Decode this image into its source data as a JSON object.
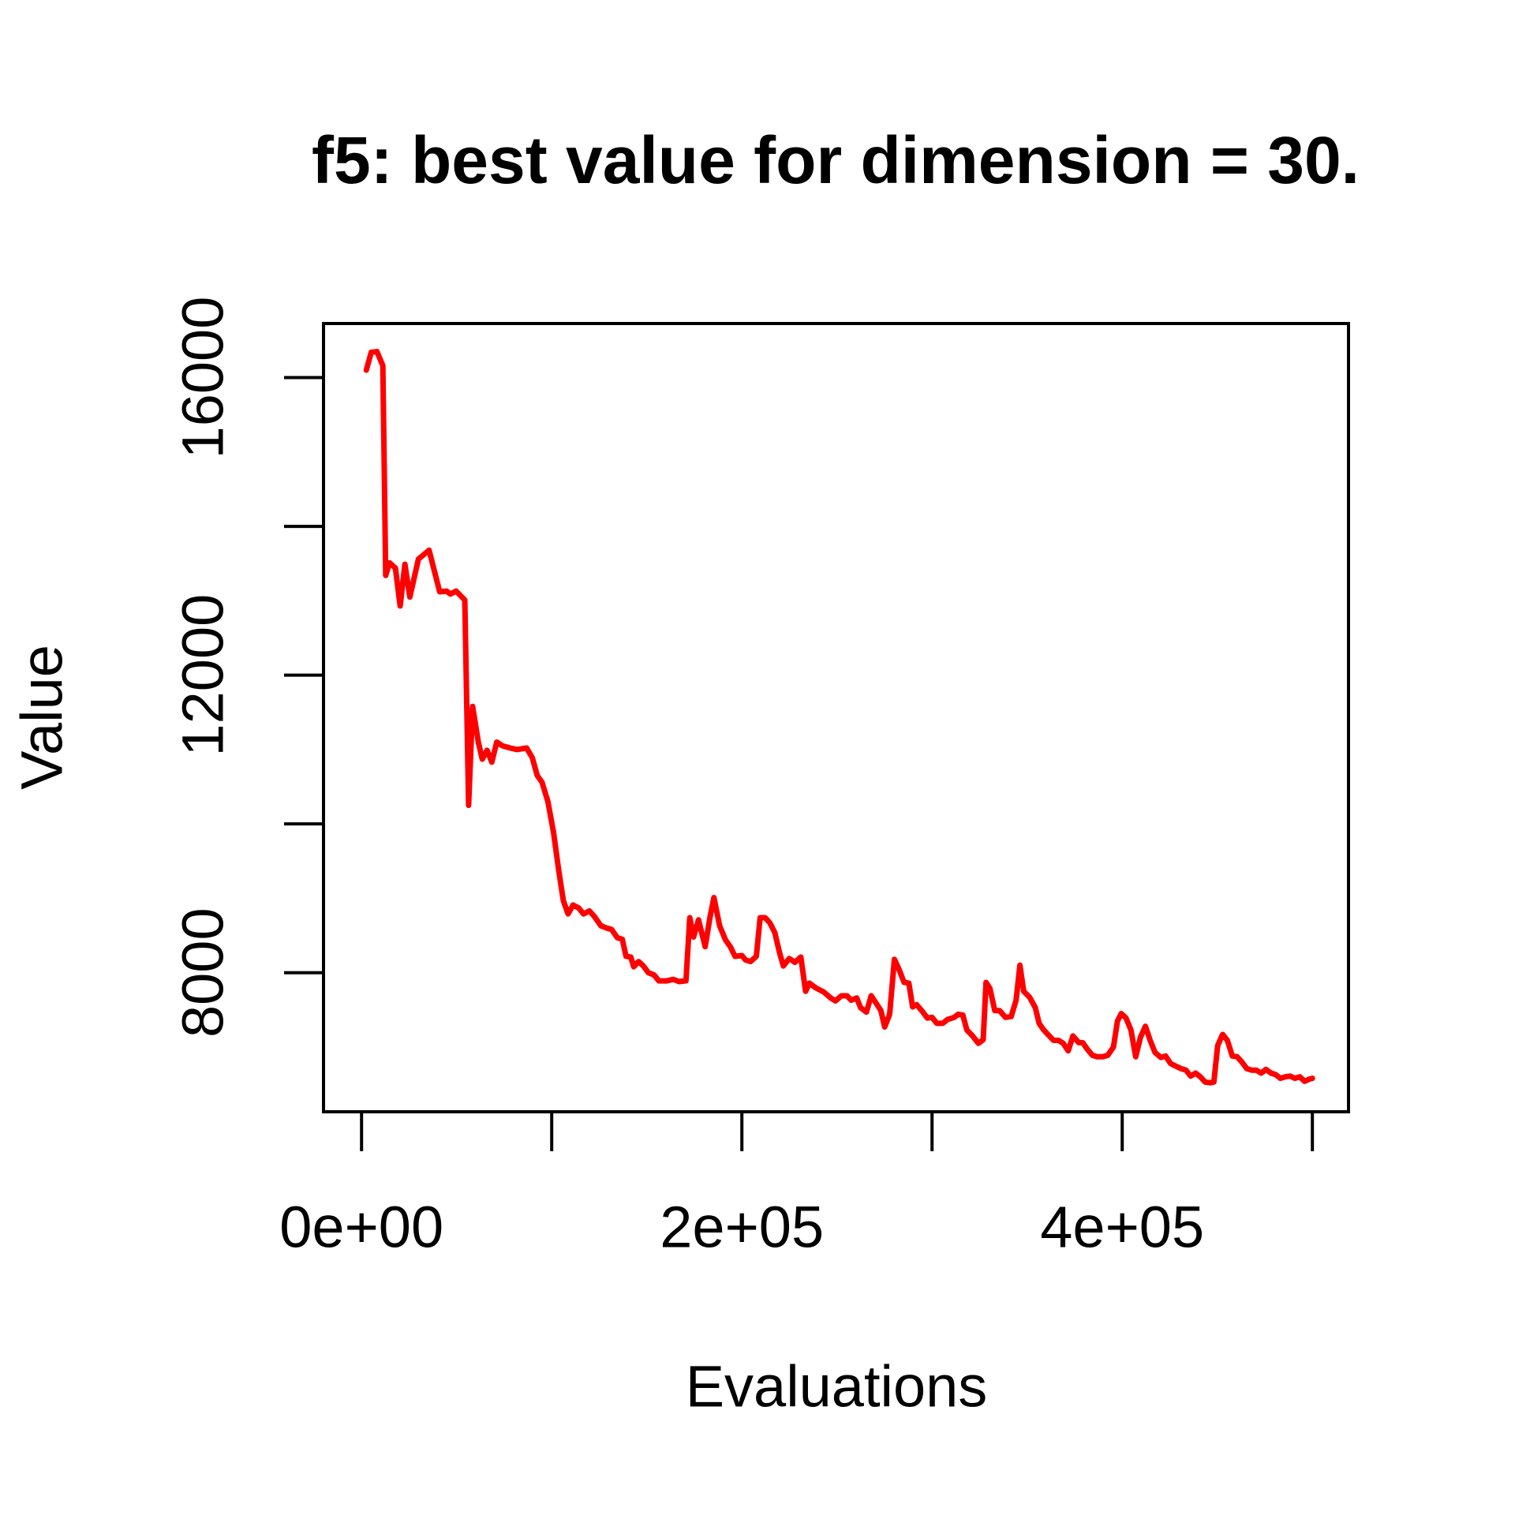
{
  "chart_data": {
    "type": "line",
    "title": "f5: best value for dimension = 30.",
    "x_label": "Evaluations",
    "y_label": "Value",
    "xlim": [
      -20000,
      519000
    ],
    "ylim": [
      6130,
      16727
    ],
    "xticks": [
      {
        "value": 0,
        "label": "0e+00"
      },
      {
        "value": 100000,
        "label": null
      },
      {
        "value": 200000,
        "label": "2e+05"
      },
      {
        "value": 300000,
        "label": null
      },
      {
        "value": 400000,
        "label": "4e+05"
      },
      {
        "value": 500000,
        "label": null
      }
    ],
    "yticks": [
      8000,
      {
        "value": 10000,
        "label": null
      },
      12000,
      {
        "value": 14000,
        "label": null
      },
      16000
    ],
    "series": [
      {
        "color": "#ff0000",
        "x": [
          2500,
          5100,
          8100,
          11200,
          12700,
          14700,
          17800,
          20300,
          22800,
          25400,
          29900,
          35500,
          41100,
          44700,
          46700,
          49700,
          54300,
          56300,
          58400,
          61400,
          63500,
          66000,
          68500,
          71100,
          74100,
          78200,
          81700,
          86800,
          89800,
          92400,
          94900,
          98000,
          101000,
          103600,
          106100,
          108600,
          111200,
          114200,
          116700,
          119800,
          122300,
          125900,
          128900,
          131500,
          134500,
          137100,
          139100,
          141600,
          143100,
          145700,
          148200,
          150800,
          153800,
          156300,
          160400,
          164000,
          167000,
          170600,
          172600,
          174600,
          177200,
          180700,
          183200,
          185300,
          188300,
          191400,
          193900,
          196400,
          200000,
          202000,
          204600,
          207600,
          209600,
          212200,
          214700,
          217300,
          219800,
          221800,
          224900,
          227900,
          231000,
          233500,
          235500,
          238600,
          243100,
          246700,
          249200,
          252300,
          255300,
          257400,
          260400,
          262400,
          265500,
          268000,
          271100,
          273100,
          275100,
          277700,
          280200,
          282700,
          285300,
          287800,
          289800,
          291900,
          294900,
          297500,
          300000,
          302500,
          305600,
          308100,
          311700,
          313700,
          316200,
          318300,
          321300,
          324400,
          326900,
          328400,
          330400,
          333000,
          335500,
          338600,
          341600,
          344200,
          346200,
          348200,
          351300,
          354300,
          356300,
          358400,
          360900,
          363900,
          366500,
          369000,
          371600,
          374100,
          377100,
          379200,
          381700,
          384300,
          386800,
          389800,
          392400,
          395400,
          397500,
          399500,
          402000,
          404600,
          407100,
          409600,
          412200,
          414700,
          417200,
          420300,
          422800,
          425400,
          428400,
          431000,
          433500,
          436000,
          438600,
          441100,
          443600,
          446200,
          448200,
          450200,
          452800,
          455300,
          457900,
          460400,
          462900,
          465500,
          468000,
          470500,
          473100,
          475600,
          478200,
          480700,
          483200,
          485800,
          488300,
          490800,
          493400,
          495900,
          498500,
          500000
        ],
        "values": [
          16100,
          16340,
          16350,
          16160,
          13340,
          13510,
          13440,
          12930,
          13490,
          13050,
          13560,
          13680,
          13120,
          13130,
          13090,
          13130,
          13010,
          10250,
          11580,
          11100,
          10870,
          10990,
          10830,
          11100,
          11050,
          11020,
          11000,
          11020,
          10890,
          10650,
          10560,
          10300,
          9880,
          9390,
          8970,
          8790,
          8910,
          8870,
          8790,
          8830,
          8760,
          8630,
          8600,
          8580,
          8470,
          8450,
          8220,
          8210,
          8080,
          8150,
          8090,
          8000,
          7970,
          7890,
          7890,
          7910,
          7880,
          7890,
          8740,
          8480,
          8710,
          8350,
          8740,
          9010,
          8630,
          8440,
          8350,
          8220,
          8230,
          8170,
          8150,
          8220,
          8740,
          8740,
          8670,
          8540,
          8270,
          8090,
          8190,
          8140,
          8210,
          7750,
          7860,
          7800,
          7740,
          7660,
          7620,
          7690,
          7690,
          7630,
          7660,
          7530,
          7470,
          7690,
          7570,
          7490,
          7270,
          7440,
          8180,
          8040,
          7870,
          7860,
          7540,
          7570,
          7480,
          7390,
          7400,
          7320,
          7320,
          7370,
          7400,
          7440,
          7430,
          7230,
          7150,
          7050,
          7100,
          7870,
          7790,
          7490,
          7490,
          7400,
          7410,
          7630,
          8100,
          7750,
          7670,
          7530,
          7320,
          7240,
          7170,
          7090,
          7090,
          7050,
          6950,
          7150,
          7060,
          7060,
          6970,
          6890,
          6870,
          6870,
          6890,
          7000,
          7350,
          7450,
          7390,
          7230,
          6870,
          7130,
          7280,
          7090,
          6930,
          6860,
          6880,
          6780,
          6740,
          6710,
          6690,
          6610,
          6650,
          6600,
          6530,
          6520,
          6530,
          7020,
          7170,
          7090,
          6880,
          6870,
          6800,
          6710,
          6690,
          6690,
          6650,
          6700,
          6650,
          6630,
          6580,
          6600,
          6610,
          6580,
          6600,
          6540,
          6570,
          6580
        ]
      }
    ]
  }
}
